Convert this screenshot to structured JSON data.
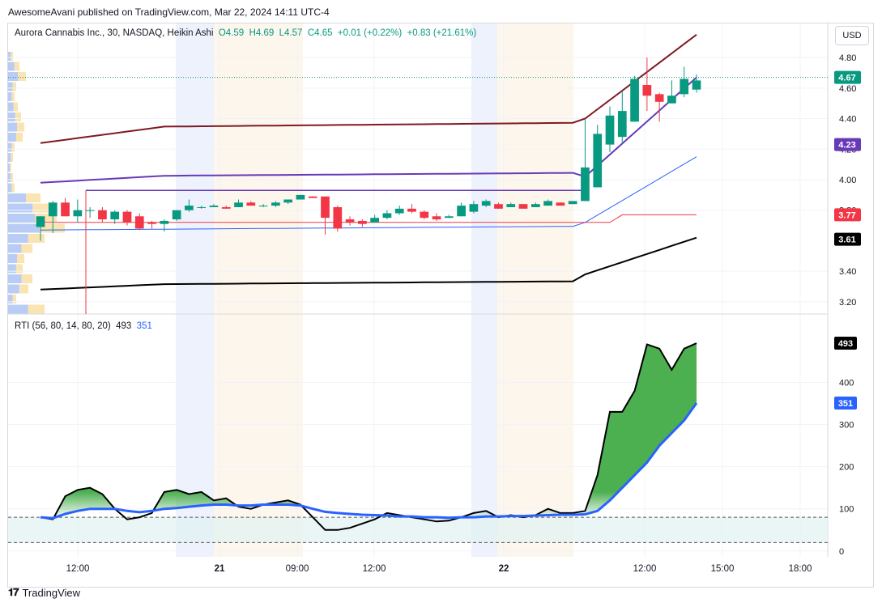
{
  "header": {
    "publish_line": "AwesomeAvani published on TradingView.com, Mar 22, 2024 14:11 UTC-4"
  },
  "footer": {
    "brand": "TradingView"
  },
  "currency_button": "USD",
  "legend": {
    "symbol": "Aurora Cannabis Inc., 30, NASDAQ, Heikin Ashi",
    "open": "O4.59",
    "high": "H4.69",
    "low": "L4.57",
    "close": "C4.65",
    "change": "+0.01 (+0.22%)",
    "session_change": "+0.83 (+21.61%)"
  },
  "rti_legend": {
    "label": "RTI (56, 80, 14, 80, 20)",
    "value1": "493",
    "value2": "351"
  },
  "colors": {
    "up": "#089981",
    "down": "#f23645",
    "purple": "#673ab7",
    "maroon": "#801922",
    "blue_line": "#2962ff",
    "rti_fill": "#4caf50"
  },
  "chart_data": [
    {
      "type": "candlestick",
      "title": "",
      "ylim": [
        3.12,
        4.88
      ],
      "yticks": [
        "4.80",
        "4.60",
        "4.40",
        "4.20",
        "4.00",
        "3.80",
        "3.40",
        "3.20"
      ],
      "xticks": [
        "12:00",
        "21",
        "09:00",
        "12:00",
        "22",
        "12:00",
        "15:00",
        "18:00"
      ],
      "last_price": "4.67",
      "price_labels": [
        {
          "value": "4.67",
          "color": "#089981"
        },
        {
          "value": "4.23",
          "color": "#673ab7"
        },
        {
          "value": "3.77",
          "color": "#f23645"
        },
        {
          "value": "3.61",
          "color": "#000000"
        }
      ],
      "candles": [
        {
          "o": 3.69,
          "h": 3.76,
          "l": 3.6,
          "c": 3.76
        },
        {
          "o": 3.76,
          "h": 3.86,
          "l": 3.65,
          "c": 3.85
        },
        {
          "o": 3.85,
          "h": 3.88,
          "l": 3.76,
          "c": 3.76
        },
        {
          "o": 3.76,
          "h": 3.87,
          "l": 3.72,
          "c": 3.8
        },
        {
          "o": 3.8,
          "h": 3.82,
          "l": 3.75,
          "c": 3.8
        },
        {
          "o": 3.8,
          "h": 3.82,
          "l": 3.72,
          "c": 3.74
        },
        {
          "o": 3.74,
          "h": 3.8,
          "l": 3.71,
          "c": 3.79
        },
        {
          "o": 3.79,
          "h": 3.8,
          "l": 3.7,
          "c": 3.72
        },
        {
          "o": 3.76,
          "h": 3.78,
          "l": 3.67,
          "c": 3.68
        },
        {
          "o": 3.72,
          "h": 3.73,
          "l": 3.68,
          "c": 3.71
        },
        {
          "o": 3.71,
          "h": 3.74,
          "l": 3.66,
          "c": 3.73
        },
        {
          "o": 3.74,
          "h": 3.8,
          "l": 3.73,
          "c": 3.8
        },
        {
          "o": 3.8,
          "h": 3.87,
          "l": 3.79,
          "c": 3.83
        },
        {
          "o": 3.82,
          "h": 3.83,
          "l": 3.81,
          "c": 3.82
        },
        {
          "o": 3.82,
          "h": 3.84,
          "l": 3.82,
          "c": 3.83
        },
        {
          "o": 3.82,
          "h": 3.83,
          "l": 3.81,
          "c": 3.81
        },
        {
          "o": 3.82,
          "h": 3.87,
          "l": 3.82,
          "c": 3.85
        },
        {
          "o": 3.85,
          "h": 3.86,
          "l": 3.83,
          "c": 3.83
        },
        {
          "o": 3.83,
          "h": 3.84,
          "l": 3.82,
          "c": 3.83
        },
        {
          "o": 3.83,
          "h": 3.86,
          "l": 3.82,
          "c": 3.85
        },
        {
          "o": 3.85,
          "h": 3.87,
          "l": 3.84,
          "c": 3.87
        },
        {
          "o": 3.87,
          "h": 3.9,
          "l": 3.87,
          "c": 3.9
        },
        {
          "o": 3.89,
          "h": 3.89,
          "l": 3.88,
          "c": 3.88
        },
        {
          "o": 3.89,
          "h": 3.89,
          "l": 3.64,
          "c": 3.75
        },
        {
          "o": 3.82,
          "h": 3.83,
          "l": 3.66,
          "c": 3.68
        },
        {
          "o": 3.74,
          "h": 3.76,
          "l": 3.7,
          "c": 3.72
        },
        {
          "o": 3.73,
          "h": 3.74,
          "l": 3.69,
          "c": 3.71
        },
        {
          "o": 3.72,
          "h": 3.77,
          "l": 3.72,
          "c": 3.75
        },
        {
          "o": 3.75,
          "h": 3.8,
          "l": 3.74,
          "c": 3.78
        },
        {
          "o": 3.78,
          "h": 3.83,
          "l": 3.77,
          "c": 3.81
        },
        {
          "o": 3.81,
          "h": 3.84,
          "l": 3.78,
          "c": 3.79
        },
        {
          "o": 3.79,
          "h": 3.8,
          "l": 3.74,
          "c": 3.75
        },
        {
          "o": 3.76,
          "h": 3.78,
          "l": 3.73,
          "c": 3.74
        },
        {
          "o": 3.75,
          "h": 3.77,
          "l": 3.75,
          "c": 3.76
        },
        {
          "o": 3.76,
          "h": 3.85,
          "l": 3.76,
          "c": 3.83
        },
        {
          "o": 3.79,
          "h": 3.86,
          "l": 3.78,
          "c": 3.84
        },
        {
          "o": 3.83,
          "h": 3.87,
          "l": 3.82,
          "c": 3.86
        },
        {
          "o": 3.84,
          "h": 3.85,
          "l": 3.81,
          "c": 3.81
        },
        {
          "o": 3.82,
          "h": 3.85,
          "l": 3.82,
          "c": 3.84
        },
        {
          "o": 3.84,
          "h": 3.84,
          "l": 3.81,
          "c": 3.81
        },
        {
          "o": 3.82,
          "h": 3.85,
          "l": 3.82,
          "c": 3.84
        },
        {
          "o": 3.83,
          "h": 3.87,
          "l": 3.83,
          "c": 3.86
        },
        {
          "o": 3.85,
          "h": 3.85,
          "l": 3.83,
          "c": 3.83
        },
        {
          "o": 3.84,
          "h": 3.86,
          "l": 3.84,
          "c": 3.86
        },
        {
          "o": 3.86,
          "h": 4.4,
          "l": 3.86,
          "c": 4.08
        },
        {
          "o": 3.95,
          "h": 4.36,
          "l": 3.95,
          "c": 4.3
        },
        {
          "o": 4.23,
          "h": 4.48,
          "l": 4.18,
          "c": 4.42
        },
        {
          "o": 4.28,
          "h": 4.58,
          "l": 4.24,
          "c": 4.45
        },
        {
          "o": 4.38,
          "h": 4.68,
          "l": 4.38,
          "c": 4.66
        },
        {
          "o": 4.62,
          "h": 4.8,
          "l": 4.45,
          "c": 4.55
        },
        {
          "o": 4.56,
          "h": 4.57,
          "l": 4.38,
          "c": 4.51
        },
        {
          "o": 4.5,
          "h": 4.65,
          "l": 4.5,
          "c": 4.55
        },
        {
          "o": 4.56,
          "h": 4.74,
          "l": 4.54,
          "c": 4.66
        },
        {
          "o": 4.59,
          "h": 4.69,
          "l": 4.57,
          "c": 4.65
        }
      ]
    },
    {
      "type": "area",
      "title": "RTI (56, 80, 14, 80, 20)",
      "ylim": [
        -10,
        520
      ],
      "yticks": [
        "400",
        "300",
        "200",
        "100",
        "0"
      ],
      "value_labels": [
        "493",
        "351"
      ],
      "series": [
        {
          "values": [
            80,
            75,
            130,
            145,
            150,
            135,
            100,
            75,
            80,
            90,
            140,
            145,
            135,
            140,
            120,
            125,
            105,
            100,
            110,
            115,
            120,
            110,
            80,
            50,
            50,
            55,
            65,
            75,
            90,
            85,
            80,
            75,
            70,
            72,
            80,
            90,
            95,
            80,
            85,
            80,
            85,
            100,
            90,
            90,
            95,
            180,
            330,
            330,
            380,
            490,
            480,
            430,
            480,
            493
          ]
        },
        {
          "values": [
            80,
            78,
            88,
            95,
            100,
            100,
            100,
            95,
            92,
            95,
            100,
            102,
            105,
            108,
            110,
            110,
            108,
            108,
            110,
            110,
            110,
            108,
            100,
            93,
            90,
            88,
            86,
            85,
            84,
            82,
            82,
            80,
            80,
            79,
            80,
            80,
            82,
            82,
            83,
            83,
            84,
            85,
            86,
            86,
            87,
            95,
            120,
            150,
            180,
            210,
            250,
            280,
            310,
            351
          ]
        }
      ]
    }
  ]
}
